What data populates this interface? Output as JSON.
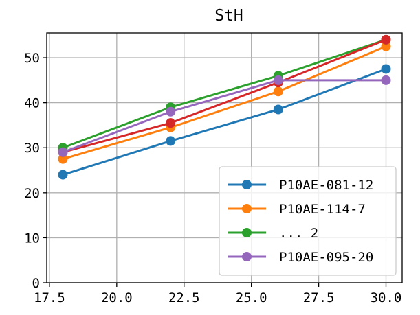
{
  "chart_data": {
    "type": "line",
    "title": "StH",
    "xlabel": "",
    "ylabel": "",
    "x": [
      18,
      22,
      26,
      30
    ],
    "xlim": [
      17.4,
      30.6
    ],
    "ylim": [
      0,
      55.5
    ],
    "xticks": [
      "17.5",
      "20.0",
      "22.5",
      "25.0",
      "27.5",
      "30.0"
    ],
    "yticks": [
      "0",
      "10",
      "20",
      "30",
      "40",
      "50"
    ],
    "grid": true,
    "legend_position": "lower-right",
    "series": [
      {
        "name": "P10AE-081-12",
        "color": "#1f77b4",
        "values": [
          24,
          31.5,
          38.5,
          47.5
        ],
        "in_legend": true
      },
      {
        "name": "P10AE-114-7",
        "color": "#ff7f0e",
        "values": [
          27.5,
          34.5,
          42.5,
          52.5
        ],
        "in_legend": true
      },
      {
        "name": "... 2",
        "color": "#2ca02c",
        "values": [
          30,
          39,
          46,
          54
        ],
        "in_legend": true
      },
      {
        "name": "",
        "color": "#d62728",
        "values": [
          29,
          35.5,
          44.5,
          54
        ],
        "in_legend": false
      },
      {
        "name": "P10AE-095-20",
        "color": "#9467bd",
        "values": [
          29,
          38,
          45,
          45
        ],
        "in_legend": true
      }
    ]
  }
}
